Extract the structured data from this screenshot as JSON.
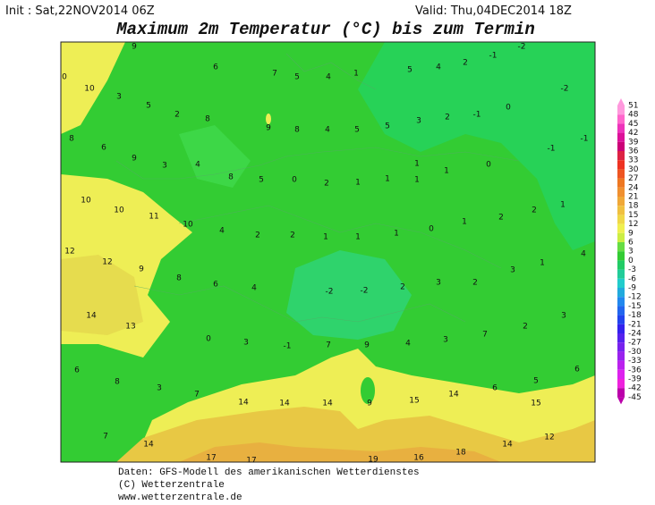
{
  "header": {
    "init": "Init : Sat,22NOV2014 06Z",
    "valid": "Valid: Thu,04DEC2014 18Z",
    "title": "Maximum 2m Temperatur (°C) bis zum Termin"
  },
  "colorbar": {
    "labels": [
      51,
      48,
      45,
      42,
      39,
      36,
      33,
      30,
      27,
      24,
      21,
      18,
      15,
      12,
      9,
      6,
      3,
      0,
      -3,
      -6,
      -9,
      -12,
      -15,
      -18,
      -21,
      -24,
      -27,
      -30,
      -33,
      -36,
      -39,
      -42,
      -45
    ],
    "colors": [
      "#ff99dd",
      "#ff66cc",
      "#ee33bb",
      "#dd1199",
      "#cc0077",
      "#dd2244",
      "#ee3322",
      "#ee5522",
      "#ee7722",
      "#f09030",
      "#f0a838",
      "#f0c040",
      "#f0d848",
      "#f0f050",
      "#ccee44",
      "#66dd44",
      "#33cc33",
      "#22cc66",
      "#22cc99",
      "#22cccc",
      "#22aadd",
      "#2288ee",
      "#2266ee",
      "#2244ee",
      "#3322ee",
      "#5522ee",
      "#7722ee",
      "#9922ee",
      "#bb22ee",
      "#dd22ee",
      "#ee22dd",
      "#bb00aa"
    ]
  },
  "map": {
    "values": [
      9,
      -2,
      0,
      10,
      6,
      7,
      5,
      4,
      1,
      5,
      4,
      2,
      -1,
      -2,
      3,
      5,
      2,
      8,
      9,
      8,
      4,
      5,
      5,
      3,
      2,
      -1,
      0,
      8,
      6,
      -1,
      -1,
      9,
      3,
      4,
      1,
      0,
      8,
      5,
      0,
      2,
      1,
      1,
      1,
      1,
      10,
      10,
      11,
      10,
      2,
      2,
      1,
      4,
      2,
      2,
      1,
      1,
      1,
      0,
      1,
      12,
      4,
      12,
      9,
      3,
      1,
      8,
      6,
      4,
      -2,
      -2,
      2,
      3,
      2,
      14,
      13,
      3,
      2,
      0,
      3,
      -1,
      7,
      9,
      4,
      3,
      7,
      6,
      8,
      3,
      7,
      6,
      5,
      6,
      14,
      14,
      14,
      9,
      15,
      14,
      15,
      7,
      14,
      12,
      14,
      17,
      17,
      18,
      16,
      19
    ]
  },
  "footer": {
    "lines": [
      "Daten: GFS-Modell des amerikanischen Wetterdienstes",
      "(C) Wetterzentrale",
      "www.wetterzentrale.de"
    ]
  }
}
